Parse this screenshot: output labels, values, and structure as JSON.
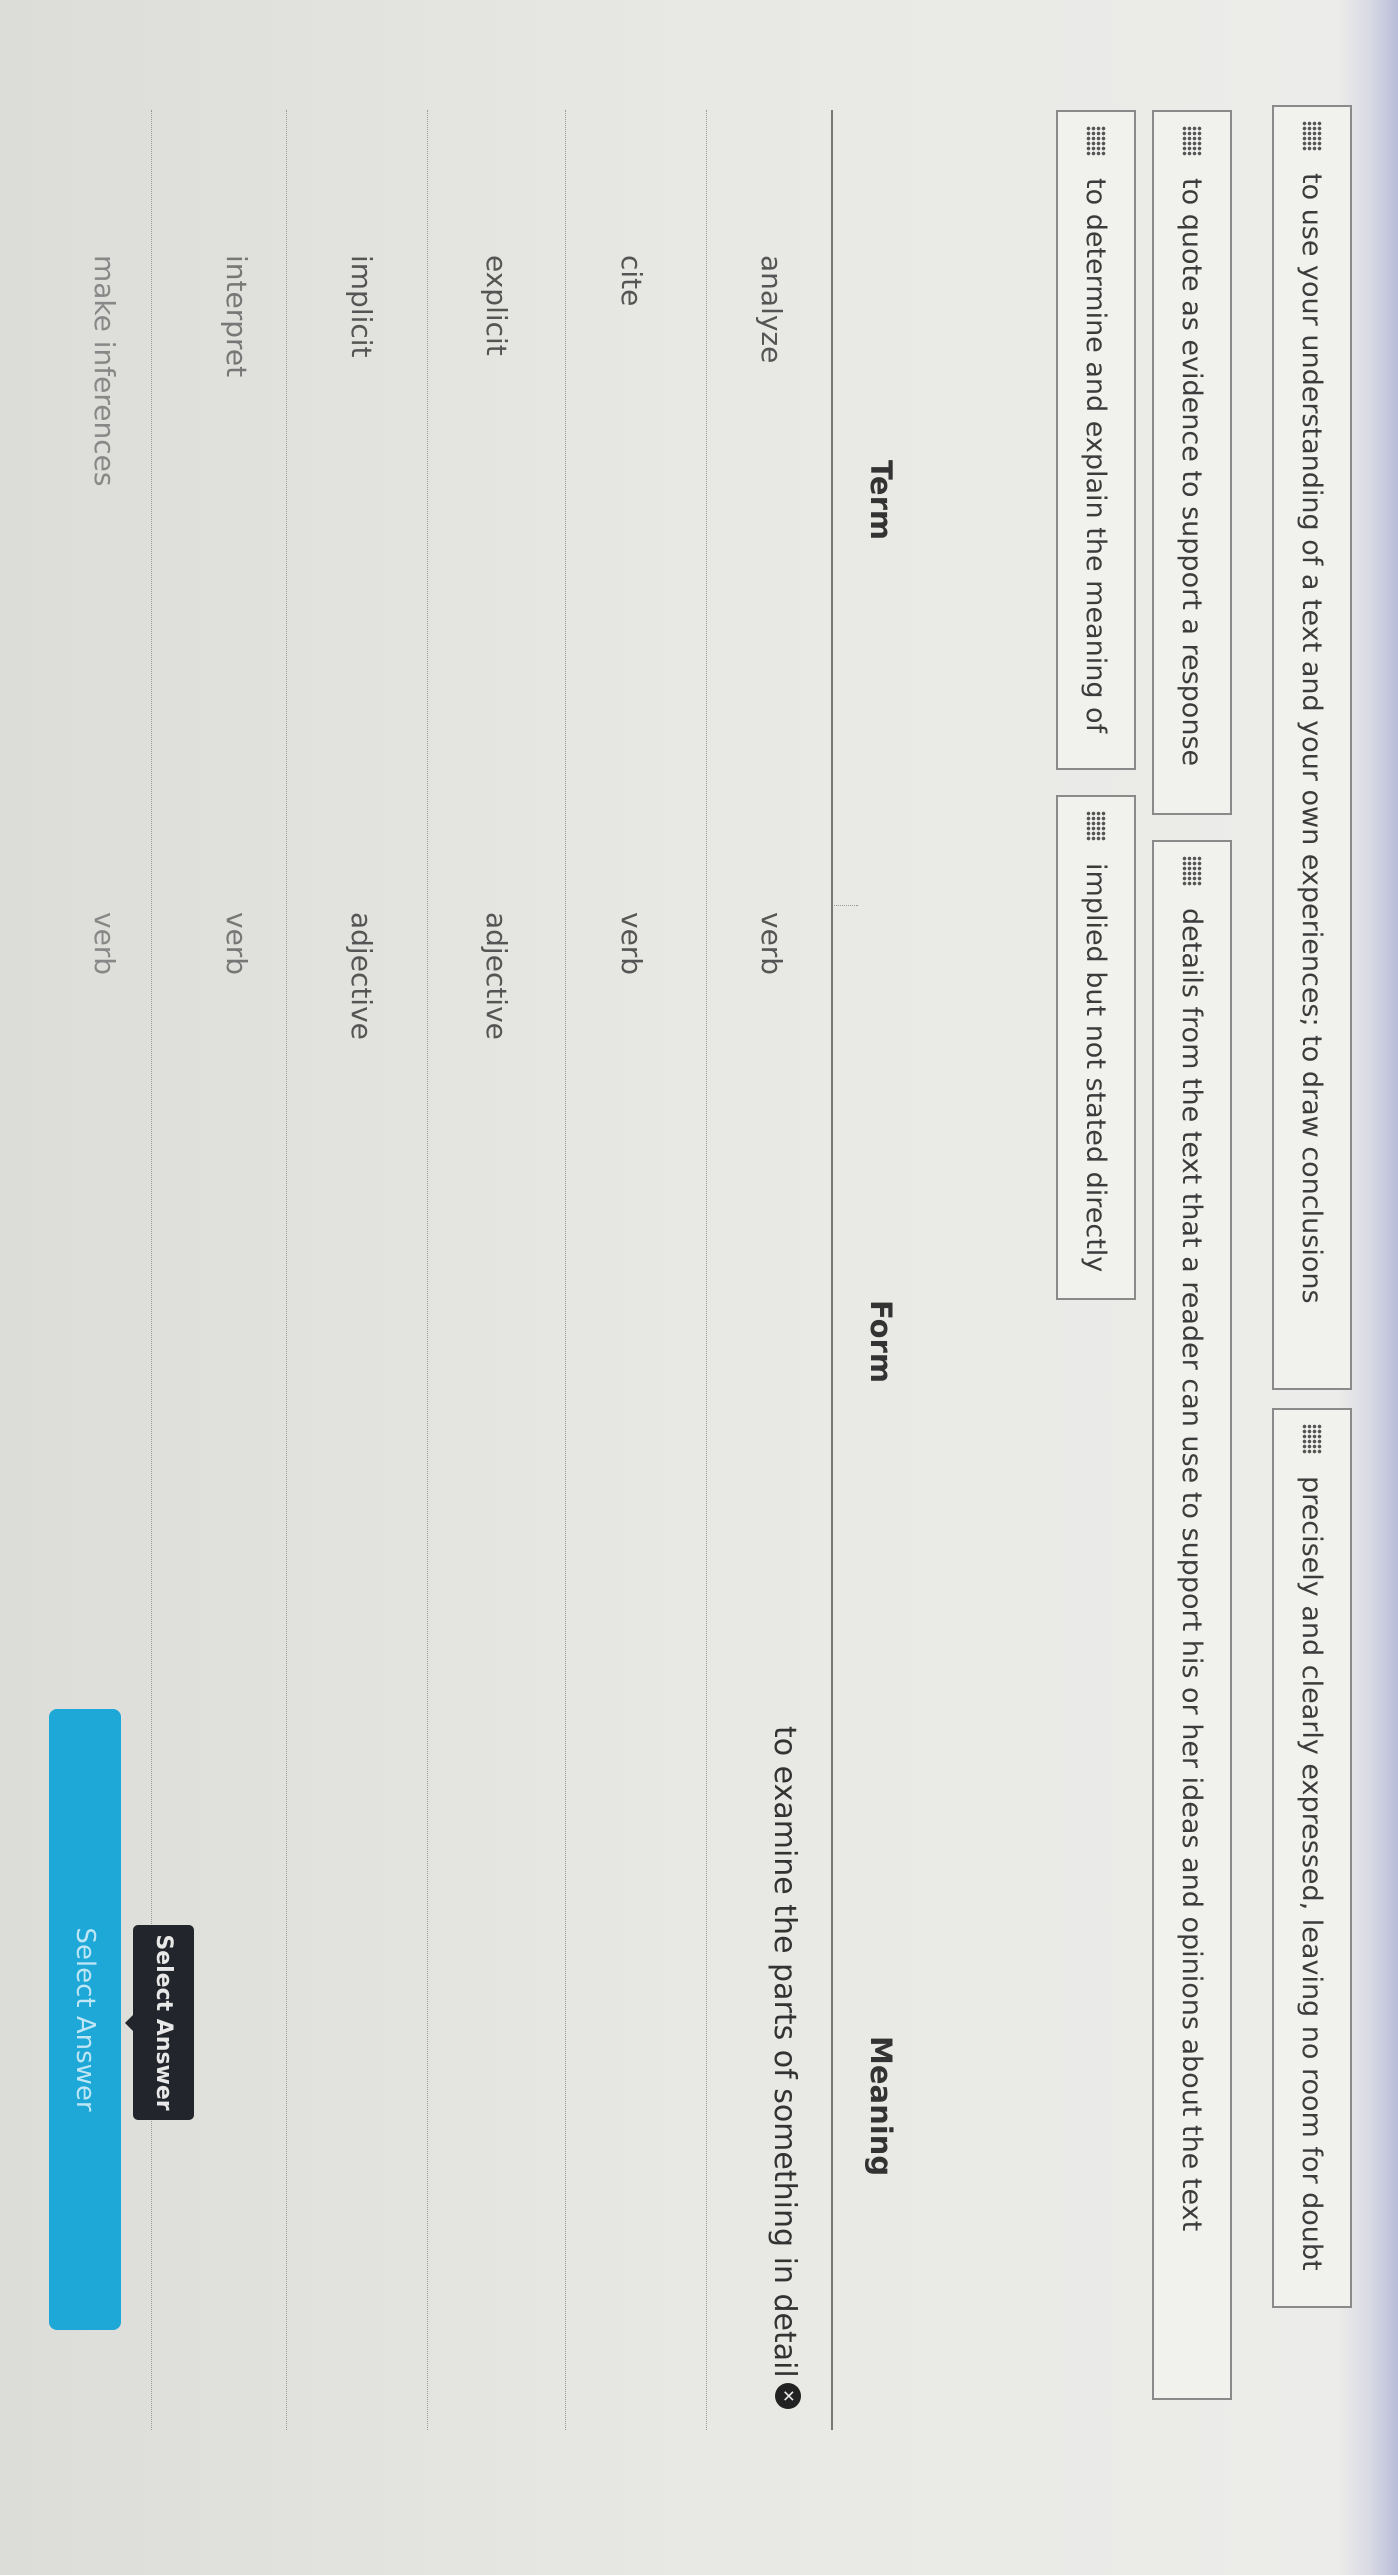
{
  "answer_bank": [
    "to use your understanding of a text and your own experiences; to draw conclusions",
    "precisely and clearly expressed, leaving no room for doubt",
    "to quote as evidence to support a response",
    "details from the text that a reader can use to support his or her ideas and opinions about the text",
    "to determine and explain the meaning of",
    "implied but not stated directly"
  ],
  "table": {
    "headers": {
      "term": "Term",
      "form": "Form",
      "meaning": "Meaning"
    },
    "rows": [
      {
        "term": "analyze",
        "form": "verb",
        "meaning": "to examine the parts of something in detail"
      },
      {
        "term": "cite",
        "form": "verb",
        "meaning": ""
      },
      {
        "term": "explicit",
        "form": "adjective",
        "meaning": ""
      },
      {
        "term": "implicit",
        "form": "adjective",
        "meaning": ""
      },
      {
        "term": "interpret",
        "form": "verb",
        "meaning": ""
      },
      {
        "term": "make inferences",
        "form": "verb",
        "meaning": ""
      }
    ]
  },
  "select_answer_button": "Select Answer",
  "tooltip": "Select Answer",
  "icons": {
    "remove_answer": "x-circle-icon",
    "drag_handle": "grip-icon"
  },
  "colors": {
    "button": "#1ea8d8",
    "tooltip": "#22252b"
  }
}
